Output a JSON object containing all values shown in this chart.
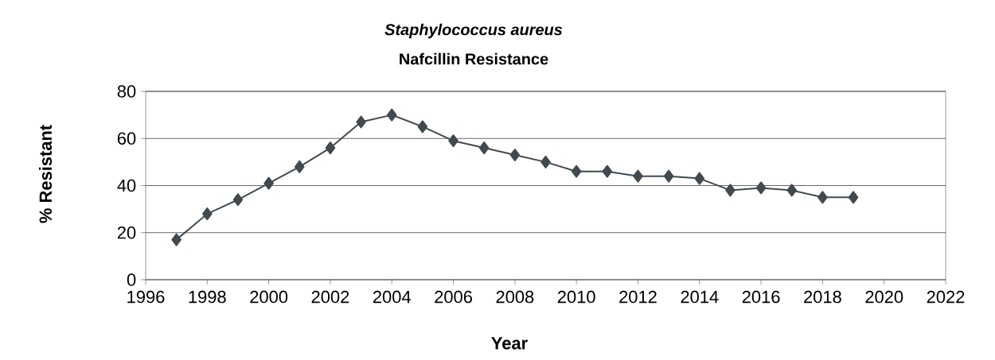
{
  "chart_data": {
    "type": "line",
    "title": "Staphylococcus aureus",
    "subtitle": "Nafcillin Resistance",
    "xlabel": "Year",
    "ylabel": "% Resistant",
    "x": [
      1997,
      1998,
      1999,
      2000,
      2001,
      2002,
      2003,
      2004,
      2005,
      2006,
      2007,
      2008,
      2009,
      2010,
      2011,
      2012,
      2013,
      2014,
      2015,
      2016,
      2017,
      2018,
      2019
    ],
    "series": [
      {
        "color": "#404a4f",
        "values": [
          17,
          28,
          34,
          41,
          48,
          56,
          67,
          70,
          65,
          59,
          56,
          53,
          50,
          46,
          46,
          44,
          44,
          43,
          38,
          39,
          38,
          35,
          35
        ]
      }
    ],
    "xlim": [
      1996,
      2022
    ],
    "ylim": [
      0,
      80
    ],
    "xticks": [
      1996,
      1998,
      2000,
      2002,
      2004,
      2006,
      2008,
      2010,
      2012,
      2014,
      2016,
      2018,
      2020,
      2022
    ],
    "yticks": [
      0,
      20,
      40,
      60,
      80
    ],
    "grid": "y",
    "marker": "diamond",
    "line_style": "solid"
  }
}
